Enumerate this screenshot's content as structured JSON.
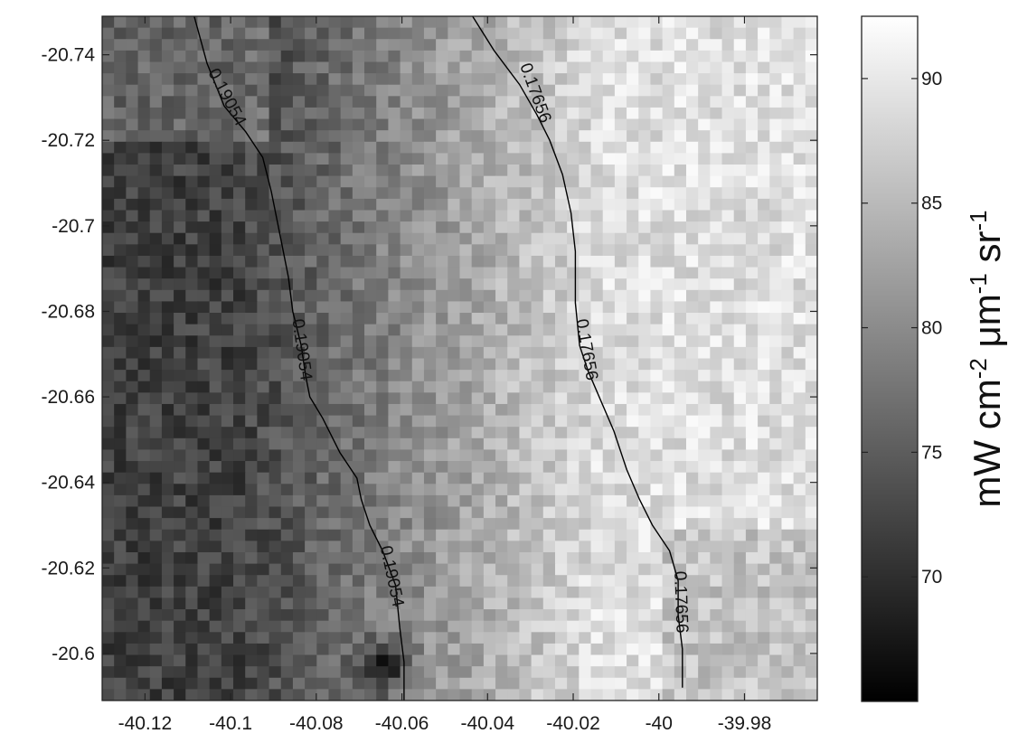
{
  "chart_data": {
    "type": "heatmap",
    "title": "",
    "xlabel": "",
    "ylabel": "",
    "x_ticks": [
      -40.12,
      -40.1,
      -40.08,
      -40.06,
      -40.04,
      -40.02,
      -40,
      -39.98
    ],
    "x_tick_labels": [
      "-40.12",
      "-40.1",
      "-40.08",
      "-40.06",
      "-40.04",
      "-40.02",
      "-40",
      "-39.98"
    ],
    "y_ticks": [
      -20.74,
      -20.72,
      -20.7,
      -20.68,
      -20.66,
      -20.64,
      -20.62,
      -20.6
    ],
    "y_tick_labels": [
      "-20.74",
      "-20.72",
      "-20.7",
      "-20.68",
      "-20.66",
      "-20.64",
      "-20.62",
      "-20.6"
    ],
    "xlim": [
      -40.13,
      -39.963
    ],
    "ylim": [
      -20.749,
      -20.589
    ],
    "y_axis_reversed": true,
    "grid": false,
    "colormap": "gray",
    "colorbar": {
      "range": [
        65,
        92.5
      ],
      "ticks": [
        70,
        75,
        80,
        85,
        90
      ],
      "tick_labels": [
        "70",
        "75",
        "80",
        "85",
        "90"
      ],
      "label": "mW cm-2 μm-1 sr-1",
      "label_parts": {
        "a": "mW cm",
        "b": "-2",
        "c": " μm",
        "d": "-1",
        "e": " sr",
        "f": "-1"
      }
    },
    "field_summary": {
      "grid_cols": 60,
      "grid_rows": 60,
      "low_value_left": 72,
      "high_value_right": 89,
      "min_spot_value": 66
    },
    "contours": [
      {
        "level_label": "0.19054",
        "points": [
          [
            -40.1085,
            -20.749
          ],
          [
            -40.1055,
            -20.738
          ],
          [
            -40.1015,
            -20.728
          ],
          [
            -40.0965,
            -20.722
          ],
          [
            -40.0925,
            -20.716
          ],
          [
            -40.0905,
            -20.708
          ],
          [
            -40.0885,
            -20.698
          ],
          [
            -40.0865,
            -20.688
          ],
          [
            -40.0855,
            -20.68
          ],
          [
            -40.0835,
            -20.672
          ],
          [
            -40.0825,
            -20.665
          ],
          [
            -40.0815,
            -20.66
          ],
          [
            -40.0785,
            -20.655
          ],
          [
            -40.0745,
            -20.647
          ],
          [
            -40.0705,
            -20.641
          ],
          [
            -40.0695,
            -20.636
          ],
          [
            -40.0675,
            -20.63
          ],
          [
            -40.0645,
            -20.624
          ],
          [
            -40.0615,
            -20.616
          ],
          [
            -40.0605,
            -20.606
          ],
          [
            -40.0595,
            -20.598
          ],
          [
            -40.0595,
            -20.589
          ]
        ],
        "label_positions": [
          [
            -40.101,
            -20.73,
            62
          ],
          [
            -40.0835,
            -20.671,
            82
          ],
          [
            -40.0625,
            -20.618,
            78
          ]
        ]
      },
      {
        "level_label": "0.17656",
        "points": [
          [
            -40.0435,
            -20.749
          ],
          [
            -40.0385,
            -20.741
          ],
          [
            -40.0325,
            -20.733
          ],
          [
            -40.0285,
            -20.726
          ],
          [
            -40.0255,
            -20.72
          ],
          [
            -40.0225,
            -20.712
          ],
          [
            -40.0205,
            -20.703
          ],
          [
            -40.0195,
            -20.694
          ],
          [
            -40.0195,
            -20.682
          ],
          [
            -40.0185,
            -20.672
          ],
          [
            -40.0165,
            -20.666
          ],
          [
            -40.0135,
            -20.659
          ],
          [
            -40.0105,
            -20.652
          ],
          [
            -40.0075,
            -20.643
          ],
          [
            -40.0045,
            -20.636
          ],
          [
            -40.0015,
            -20.63
          ],
          [
            -39.9975,
            -20.624
          ],
          [
            -39.9955,
            -20.617
          ],
          [
            -39.9955,
            -20.609
          ],
          [
            -39.9945,
            -20.601
          ],
          [
            -39.9945,
            -20.592
          ]
        ],
        "label_positions": [
          [
            -40.029,
            -20.731,
            70
          ],
          [
            -40.017,
            -20.671,
            80
          ],
          [
            -39.995,
            -20.612,
            88
          ]
        ]
      }
    ]
  }
}
